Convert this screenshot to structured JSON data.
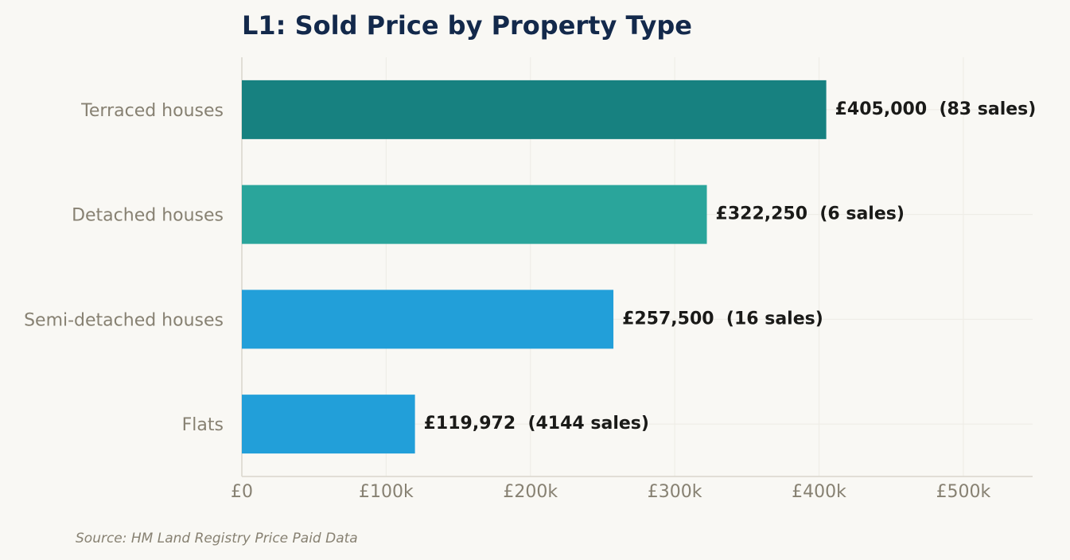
{
  "chart_data": {
    "type": "bar",
    "orientation": "horizontal",
    "title": "L1: Sold Price by Property Type",
    "xlabel": "",
    "ylabel": "",
    "categories": [
      "Terraced houses",
      "Detached houses",
      "Semi-detached houses",
      "Flats"
    ],
    "values": [
      405000,
      322250,
      257500,
      119972
    ],
    "value_labels": [
      "£405,000  (83 sales)",
      "£322,250  (6 sales)",
      "£257,500  (16 sales)",
      "£119,972  (4144 sales)"
    ],
    "sales": [
      83,
      6,
      16,
      4144
    ],
    "bar_colors": [
      "#178180",
      "#2aa59b",
      "#229fd9",
      "#229fd9"
    ],
    "xlim": [
      0,
      548000
    ],
    "xticks": [
      0,
      100000,
      200000,
      300000,
      400000,
      500000
    ],
    "xtick_labels": [
      "£0",
      "£100k",
      "£200k",
      "£300k",
      "£400k",
      "£500k"
    ],
    "grid": true,
    "source": "Source: HM Land Registry Price Paid Data"
  },
  "colors": {
    "background": "#f9f8f4",
    "title": "#13294b",
    "axis_text": "#878172",
    "value_text": "#1a1a18",
    "axis_line": "#d9d6cc",
    "grid": "#efede7"
  }
}
